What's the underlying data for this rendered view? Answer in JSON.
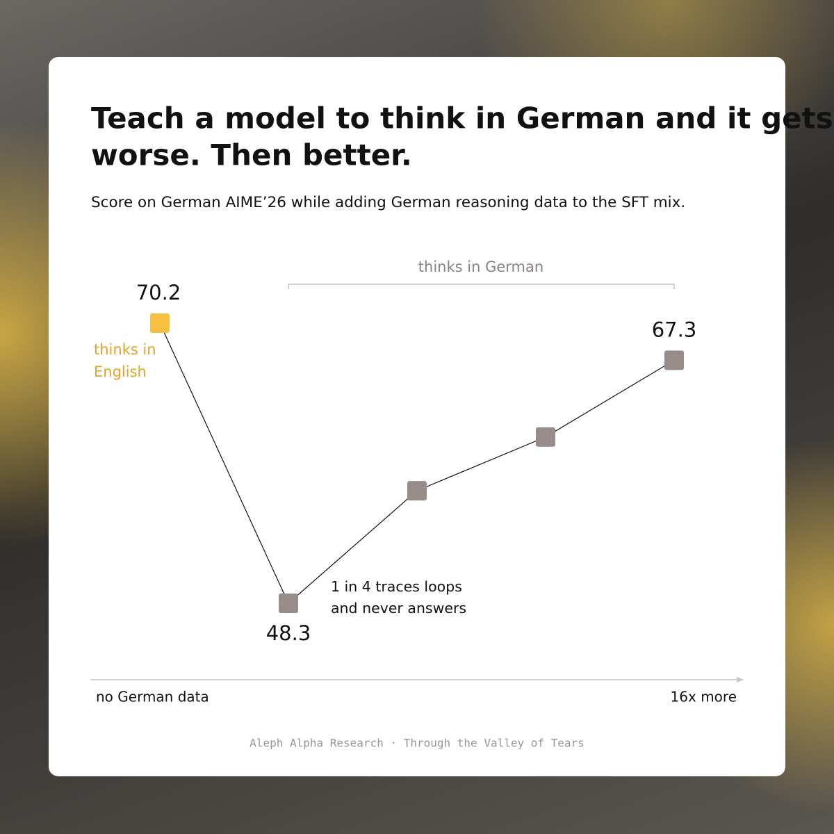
{
  "chart_data": {
    "type": "line",
    "title": [
      "Teach a model to think in German and it gets",
      "worse. Then better."
    ],
    "subtitle": "Score on German AIME’26 while adding German reasoning data to the SFT mix.",
    "categories": [
      "no German data",
      null,
      null,
      null,
      "16x more"
    ],
    "values": [
      70.2,
      48.3,
      57.1,
      61.3,
      67.3
    ],
    "value_labels": [
      "70.2",
      "48.3",
      null,
      null,
      "67.3"
    ],
    "point_colors": [
      "#f6c040",
      "#978c89",
      "#978c89",
      "#978c89",
      "#978c89"
    ],
    "line_color": "#111111",
    "annotations": [
      {
        "lines": [
          "thinks in",
          "English"
        ],
        "color": "#e3a22a"
      },
      {
        "lines": [
          "thinks in German"
        ],
        "color": "#8c8280"
      },
      {
        "lines": [
          "1 in 4 traces loops",
          "and never answers"
        ],
        "color": "#111111"
      }
    ],
    "source": "Aleph Alpha Research · Through the Valley of Tears"
  }
}
